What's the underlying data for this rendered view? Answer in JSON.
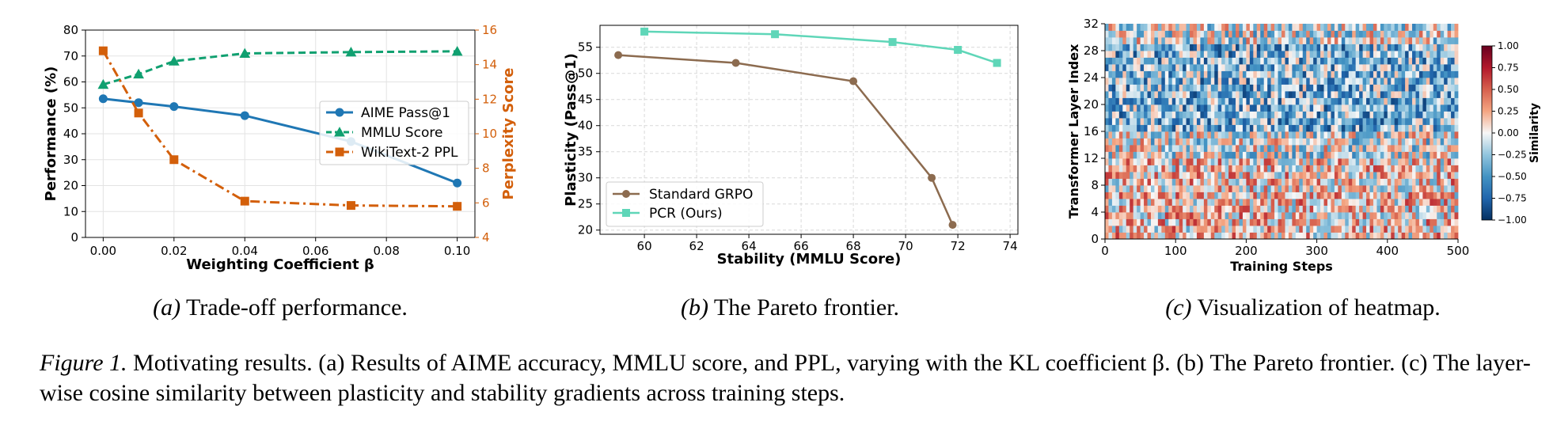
{
  "chart_data": [
    {
      "type": "line",
      "x": [
        0.0,
        0.01,
        0.02,
        0.04,
        0.07,
        0.1
      ],
      "xlabel": "Weighting Coefficient β",
      "ylabel": "Performance (%)",
      "y2label": "Perplexity Score",
      "xlim": [
        -0.005,
        0.105
      ],
      "ylim": [
        0,
        80
      ],
      "y2lim": [
        4,
        16
      ],
      "xticks": [
        "0.00",
        "0.02",
        "0.04",
        "0.06",
        "0.08",
        "0.10"
      ],
      "yticks": [
        "0",
        "10",
        "20",
        "30",
        "40",
        "50",
        "60",
        "70",
        "80"
      ],
      "y2ticks": [
        "4",
        "6",
        "8",
        "10",
        "12",
        "14",
        "16"
      ],
      "grid": true,
      "legend_position": "center-right",
      "series": [
        {
          "name": "AIME Pass@1",
          "axis": "left",
          "values": [
            53.5,
            52.0,
            50.5,
            47.0,
            37.0,
            21.0
          ],
          "color": "#1f77b4",
          "marker": "circle",
          "line": "solid"
        },
        {
          "name": "MMLU Score",
          "axis": "left",
          "values": [
            59.0,
            63.0,
            68.0,
            71.0,
            71.5,
            71.8
          ],
          "color": "#10a070",
          "marker": "triangle",
          "line": "dashed"
        },
        {
          "name": "WikiText-2 PPL",
          "axis": "right",
          "values": [
            14.8,
            11.2,
            8.5,
            6.1,
            5.85,
            5.8
          ],
          "color": "#d35f0a",
          "marker": "square",
          "line": "dashdot"
        }
      ]
    },
    {
      "type": "line",
      "xlabel": "Stability (MMLU Score)",
      "ylabel": "Plasticity (Pass@1)",
      "xlim": [
        58.3,
        74.3
      ],
      "ylim": [
        19.2,
        59.2
      ],
      "xticks": [
        "60",
        "62",
        "64",
        "66",
        "68",
        "70",
        "72",
        "74"
      ],
      "yticks": [
        "20",
        "25",
        "30",
        "35",
        "40",
        "45",
        "50",
        "55"
      ],
      "grid": true,
      "legend_position": "lower-left",
      "series": [
        {
          "name": "Standard GRPO",
          "x": [
            59.0,
            63.5,
            68.0,
            71.0,
            71.8
          ],
          "y": [
            53.5,
            52.0,
            48.5,
            30.0,
            21.0
          ],
          "color": "#8c6b4f",
          "marker": "circle"
        },
        {
          "name": "PCR (Ours)",
          "x": [
            60.0,
            65.0,
            69.5,
            72.0,
            73.5
          ],
          "y": [
            58.0,
            57.5,
            56.0,
            54.5,
            52.0
          ],
          "color": "#5fd6b8",
          "marker": "square"
        }
      ]
    },
    {
      "type": "heatmap",
      "xlabel": "Training Steps",
      "ylabel": "Transformer Layer Index",
      "xlim": [
        0,
        500
      ],
      "ylim": [
        0,
        32
      ],
      "xticks": [
        "0",
        "100",
        "200",
        "300",
        "400",
        "500"
      ],
      "yticks": [
        "0",
        "4",
        "8",
        "12",
        "16",
        "20",
        "24",
        "28",
        "32"
      ],
      "colorbar": {
        "label": "Similarity",
        "range": [
          -1.0,
          1.0
        ],
        "ticks": [
          "1.00",
          "0.75",
          "0.50",
          "0.25",
          "0.00",
          "−0.25",
          "−0.50",
          "−0.75",
          "−1.00"
        ],
        "colormap": "RdBu_r"
      },
      "pattern": "lower layers (0–12) weakly positive/mixed similarity; middle-upper layers (16–28) predominantly negative similarity"
    }
  ],
  "subcaptions": [
    {
      "tag": "(a)",
      "text": " Trade-off performance."
    },
    {
      "tag": "(b)",
      "text": " The Pareto frontier."
    },
    {
      "tag": "(c)",
      "text": " Visualization of heatmap."
    }
  ],
  "caption": {
    "label": "Figure 1.",
    "text": " Motivating results. (a) Results of AIME accuracy, MMLU score, and PPL, varying with the KL coefficient β. (b) The Pareto frontier. (c) The layer-wise cosine similarity between plasticity and stability gradients across training steps."
  }
}
